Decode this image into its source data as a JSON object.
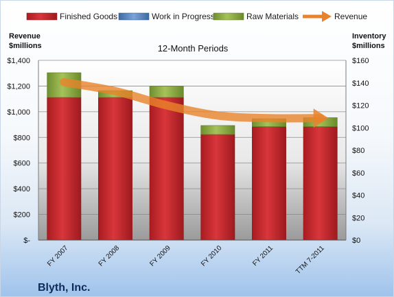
{
  "chart_data": {
    "type": "bar",
    "stacked": true,
    "subtitle": "12-Month Periods",
    "company": "Blyth, Inc.",
    "categories": [
      "FY 2007",
      "FY 2008",
      "FY 2009",
      "FY 2010",
      "FY 2011",
      "TTM 7-2011"
    ],
    "series": [
      {
        "name": "Finished Goods",
        "axis": "right",
        "color": "#c0282d",
        "values": [
          127,
          127,
          127,
          94,
          101,
          101
        ]
      },
      {
        "name": "Work in Progress",
        "axis": "right",
        "color": "#4f81bd",
        "values": [
          0,
          0,
          0,
          0,
          0,
          0
        ]
      },
      {
        "name": "Raw Materials",
        "axis": "right",
        "color": "#8fae45",
        "values": [
          22,
          6,
          10,
          8,
          7,
          8
        ]
      },
      {
        "name": "Revenue",
        "axis": "left",
        "color": "#e8832b",
        "values": [
          1230,
          1160,
          1050,
          970,
          950,
          950
        ]
      }
    ],
    "left_axis": {
      "title_line1": "Revenue",
      "title_line2": "$millions",
      "range": [
        0,
        1400
      ],
      "ticks": [
        {
          "value": 0,
          "label": "$-"
        },
        {
          "value": 200,
          "label": "$200"
        },
        {
          "value": 400,
          "label": "$400"
        },
        {
          "value": 600,
          "label": "$600"
        },
        {
          "value": 800,
          "label": "$800"
        },
        {
          "value": 1000,
          "label": "$1,000"
        },
        {
          "value": 1200,
          "label": "$1,200"
        },
        {
          "value": 1400,
          "label": "$1,400"
        }
      ]
    },
    "right_axis": {
      "title_line1": "Inventory",
      "title_line2": "$millions",
      "range": [
        0,
        160
      ],
      "ticks": [
        {
          "value": 0,
          "label": "$0"
        },
        {
          "value": 20,
          "label": "$20"
        },
        {
          "value": 40,
          "label": "$40"
        },
        {
          "value": 60,
          "label": "$60"
        },
        {
          "value": 80,
          "label": "$80"
        },
        {
          "value": 100,
          "label": "$100"
        },
        {
          "value": 120,
          "label": "$120"
        },
        {
          "value": 140,
          "label": "$140"
        },
        {
          "value": 160,
          "label": "$160"
        }
      ]
    },
    "grid": true,
    "legend_position": "top"
  }
}
